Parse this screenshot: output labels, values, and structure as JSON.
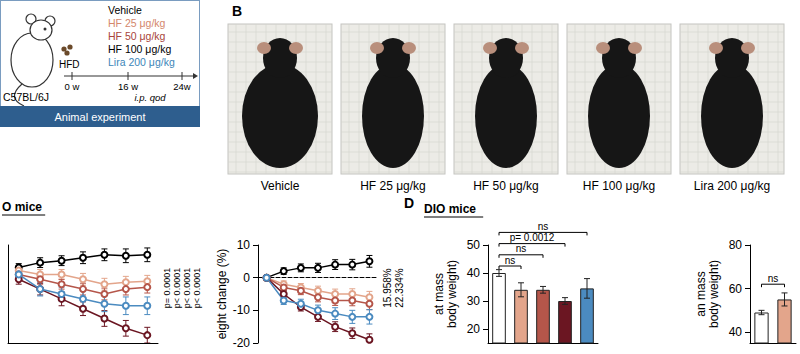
{
  "panel_a": {
    "strain": "C57BL/6J",
    "diet": "HFD",
    "groups": [
      {
        "label": "Vehicle",
        "color": "#000000"
      },
      {
        "label": "HF 25 μg/kg",
        "color": "#d4876c"
      },
      {
        "label": "HF 50 μg/kg",
        "color": "#a8453b"
      },
      {
        "label": "HF 100 μg/kg",
        "color": "#000000"
      },
      {
        "label": "Lira 200 μg/kg",
        "color": "#3d86b8"
      }
    ],
    "timeline": [
      "0 w",
      "16 w",
      "24w"
    ],
    "route": "i.p. qod",
    "footer": "Animal experiment"
  },
  "panel_b": {
    "label": "B",
    "photos": [
      "Vehicle",
      "HF 25 μg/kg",
      "HF 50 μg/kg",
      "HF 100 μg/kg",
      "Lira 200 μg/kg"
    ]
  },
  "panel_d_label": "D",
  "chart_data": [
    {
      "type": "line",
      "title": "O mice",
      "x": [
        0,
        1,
        2,
        3,
        4,
        5,
        6
      ],
      "xlim": [
        -0.5,
        6.5
      ],
      "ylim": [
        30,
        50
      ],
      "tick_labels": false,
      "marker": "circle",
      "series": [
        {
          "color": "#000000",
          "values": [
            45.4,
            46.4,
            46.8,
            47.4,
            48,
            47.8,
            48
          ],
          "errors": [
            0.8,
            1,
            1,
            1.2,
            1.2,
            1.4,
            1.4
          ]
        },
        {
          "color": "#e3a58b",
          "values": [
            44.8,
            44,
            44,
            43,
            42,
            42.4,
            42.6
          ],
          "errors": [
            0.8,
            1,
            1,
            1.2,
            1.2,
            1.2,
            1.2
          ]
        },
        {
          "color": "#b5564a",
          "values": [
            44,
            43,
            42,
            41,
            40,
            41,
            41.4
          ],
          "errors": [
            0.8,
            1,
            1,
            1.2,
            1.2,
            1.2,
            1.2
          ]
        },
        {
          "color": "#6b1622",
          "values": [
            43,
            41,
            39,
            37,
            35,
            33,
            31.6
          ],
          "errors": [
            1,
            1.2,
            1.4,
            1.4,
            1.6,
            1.6,
            1.6
          ]
        },
        {
          "color": "#4b8bc0",
          "values": [
            44,
            41,
            40,
            39,
            38,
            37.6,
            37.6
          ],
          "errors": [
            1,
            1.4,
            1.4,
            1.6,
            1.6,
            1.8,
            1.8
          ]
        }
      ],
      "annotations": [
        "p= 0.0001",
        "p< 0.0001",
        "p< 0.0001",
        "p< 0.0001"
      ]
    },
    {
      "type": "line",
      "y_label": "eight change (%)",
      "x": [
        0,
        1,
        2,
        3,
        4,
        5,
        6
      ],
      "xlim": [
        -0.5,
        6.5
      ],
      "ylim": [
        -20,
        10
      ],
      "yticks": [
        -20,
        -10,
        0,
        10
      ],
      "tick_labels": "y",
      "marker": "circle",
      "series": [
        {
          "color": "#000000",
          "values": [
            0,
            2,
            3,
            3,
            4,
            4,
            5
          ],
          "errors": [
            0.5,
            1,
            1.2,
            1.4,
            1.5,
            1.6,
            1.8
          ]
        },
        {
          "color": "#e3a58b",
          "values": [
            0,
            -2,
            -3,
            -4,
            -5,
            -5,
            -6
          ],
          "errors": [
            0.5,
            1,
            1.2,
            1.4,
            1.5,
            1.6,
            1.8
          ]
        },
        {
          "color": "#b5564a",
          "values": [
            0,
            -3,
            -4,
            -6,
            -7,
            -7,
            -8
          ],
          "errors": [
            0.5,
            1,
            1.2,
            1.4,
            1.5,
            1.6,
            1.8
          ]
        },
        {
          "color": "#6b1622",
          "values": [
            0,
            -5,
            -9,
            -12,
            -15,
            -17,
            -19
          ],
          "errors": [
            0.5,
            1,
            1.2,
            1.4,
            1.5,
            1.6,
            1.8
          ]
        },
        {
          "color": "#4b8bc0",
          "values": [
            0,
            -7,
            -8,
            -10,
            -11,
            -12,
            -12
          ],
          "errors": [
            0.5,
            1.2,
            1.4,
            1.6,
            1.8,
            2,
            2.2
          ]
        }
      ],
      "annotations": [
        "15.958%",
        "22.334%"
      ]
    },
    {
      "type": "bar",
      "title": "DIO mice",
      "y_label": "at mass\nbody weight)",
      "categories": [
        null,
        null,
        null,
        null,
        null
      ],
      "values": [
        40,
        34,
        34,
        30,
        34.5
      ],
      "errors": [
        1.2,
        2.5,
        1.2,
        1.2,
        3.5
      ],
      "colors": [
        "#ffffff",
        "#e3a58b",
        "#b5564a",
        "#6b1622",
        "#4b8bc0"
      ],
      "ylim": [
        15,
        50
      ],
      "yticks": [
        20,
        30,
        40,
        50
      ],
      "tick_labels": "y",
      "comparisons": [
        {
          "from": 0,
          "to": 1,
          "y": 42.5,
          "label": "ns"
        },
        {
          "from": 0,
          "to": 2,
          "y": 46.5,
          "label": "ns"
        },
        {
          "from": 0,
          "to": 3,
          "y": 50.5,
          "label": "p= 0.0012"
        },
        {
          "from": 0,
          "to": 4,
          "y": 54.5,
          "label": "ns"
        }
      ]
    },
    {
      "type": "bar",
      "y_label": "an mass\nbody weight)",
      "categories": [
        null,
        null
      ],
      "values": [
        49,
        55
      ],
      "errors": [
        1,
        3
      ],
      "colors": [
        "#ffffff",
        "#e3a58b"
      ],
      "ylim": [
        35,
        80
      ],
      "yticks": [
        40,
        60,
        80
      ],
      "tick_labels": "y",
      "comparisons": [
        {
          "from": 0,
          "to": 1,
          "y": 62,
          "label": "ns"
        }
      ]
    }
  ]
}
